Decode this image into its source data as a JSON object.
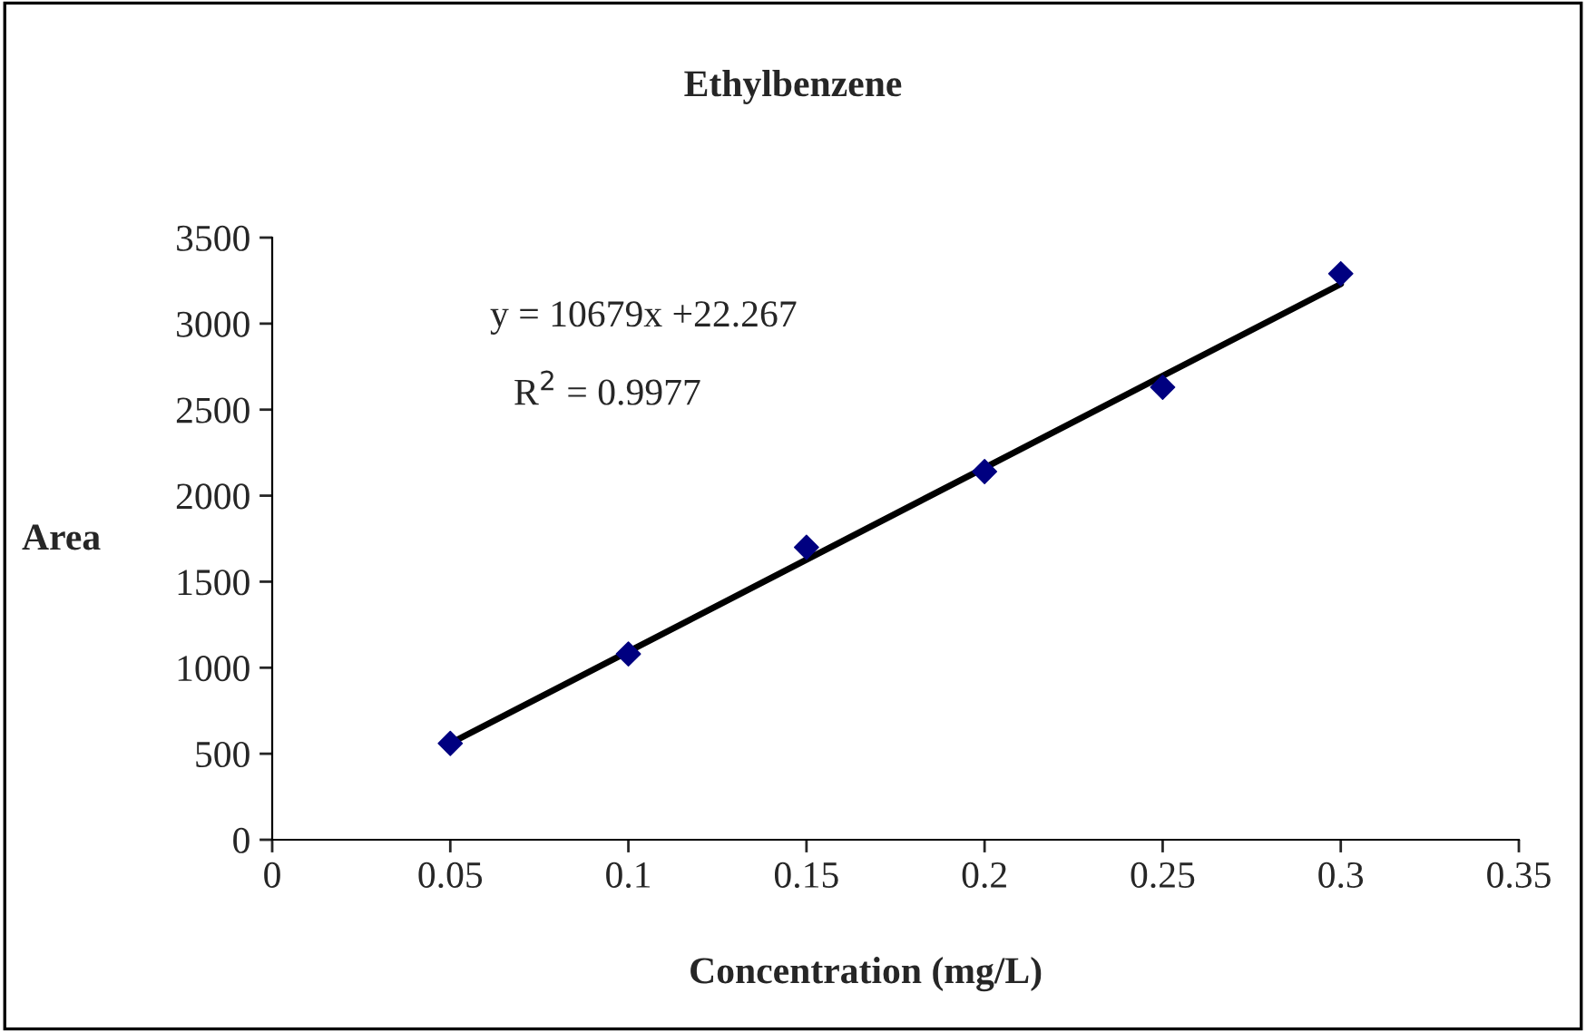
{
  "chart_data": {
    "type": "scatter",
    "title": "Ethylbenzene",
    "xlabel": "Concentration (mg/L)",
    "ylabel": "Area",
    "x": [
      0.05,
      0.1,
      0.15,
      0.2,
      0.25,
      0.3
    ],
    "series": [
      {
        "color": "#000080",
        "marker": "diamond",
        "values": [
          560,
          1080,
          1700,
          2140,
          2630,
          3290
        ]
      },
      {
        "type": "line",
        "color": "#000000",
        "marker": "none",
        "line_style": "solid",
        "x": [
          0.05,
          0.3
        ],
        "values": [
          560,
          3230
        ]
      }
    ],
    "annotations": [
      "y = 10679x +22.267",
      "R$^{2}$ = 0.9977"
    ],
    "xlim": [
      0,
      0.35
    ],
    "xticks": [
      0,
      0.05,
      0.1,
      0.15,
      0.2,
      0.25,
      0.3,
      0.35
    ],
    "ylim": [
      0,
      3500
    ],
    "yticks": [
      0,
      500,
      1000,
      1500,
      2000,
      2500,
      3000,
      3500
    ],
    "grid": false,
    "legend": false
  }
}
